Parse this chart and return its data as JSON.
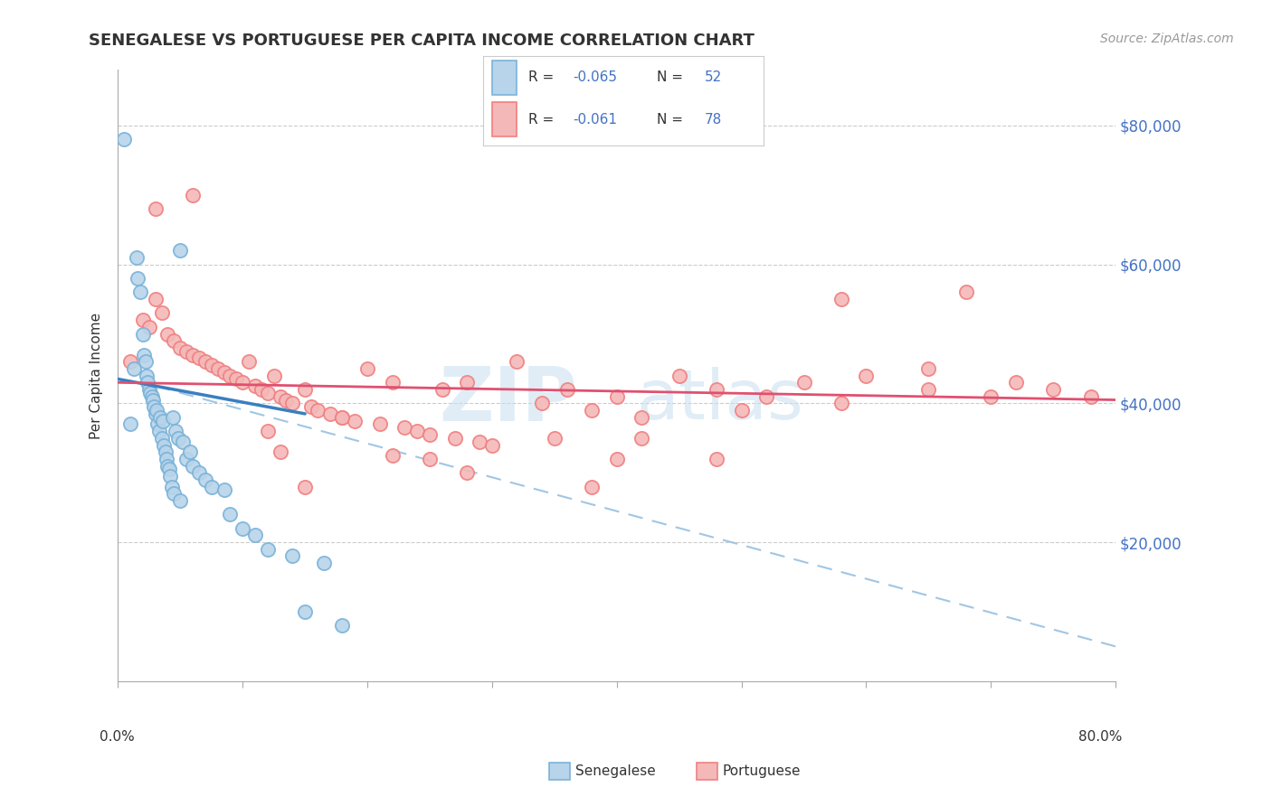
{
  "title": "SENEGALESE VS PORTUGUESE PER CAPITA INCOME CORRELATION CHART",
  "source": "Source: ZipAtlas.com",
  "ylabel": "Per Capita Income",
  "xlim": [
    0.0,
    80.0
  ],
  "ylim": [
    0,
    88000
  ],
  "blue_edge": "#7ab3d9",
  "blue_face": "#b8d4ea",
  "pink_edge": "#f08080",
  "pink_face": "#f5b8b8",
  "trend_blue_solid": "#3a7fbf",
  "trend_blue_dash": "#90bce0",
  "trend_pink": "#e05070",
  "watermark_color": "#c8dff0",
  "senegalese_x": [
    0.5,
    1.0,
    1.3,
    1.5,
    1.6,
    1.8,
    2.0,
    2.1,
    2.2,
    2.3,
    2.4,
    2.5,
    2.6,
    2.7,
    2.8,
    2.9,
    3.0,
    3.1,
    3.2,
    3.3,
    3.4,
    3.5,
    3.6,
    3.7,
    3.8,
    3.9,
    4.0,
    4.1,
    4.2,
    4.3,
    4.4,
    4.5,
    4.6,
    4.8,
    5.0,
    5.2,
    5.5,
    5.8,
    6.0,
    6.5,
    7.0,
    7.5,
    8.5,
    9.0,
    10.0,
    11.0,
    12.0,
    14.0,
    15.0,
    16.5,
    18.0,
    5.0
  ],
  "senegalese_y": [
    78000,
    37000,
    45000,
    61000,
    58000,
    56000,
    50000,
    47000,
    46000,
    44000,
    43000,
    42000,
    41500,
    41000,
    40500,
    39500,
    38500,
    39000,
    37000,
    36000,
    38000,
    35000,
    37500,
    34000,
    33000,
    32000,
    31000,
    30500,
    29500,
    28000,
    38000,
    27000,
    36000,
    35000,
    26000,
    34500,
    32000,
    33000,
    31000,
    30000,
    29000,
    28000,
    27500,
    24000,
    22000,
    21000,
    19000,
    18000,
    10000,
    17000,
    8000,
    62000
  ],
  "portuguese_x": [
    1.0,
    2.0,
    2.5,
    3.0,
    3.5,
    4.0,
    4.5,
    5.0,
    5.5,
    6.0,
    6.5,
    7.0,
    7.5,
    8.0,
    8.5,
    9.0,
    9.5,
    10.0,
    10.5,
    11.0,
    11.5,
    12.0,
    12.5,
    13.0,
    13.5,
    14.0,
    15.0,
    15.5,
    16.0,
    17.0,
    18.0,
    19.0,
    20.0,
    21.0,
    22.0,
    23.0,
    24.0,
    25.0,
    26.0,
    27.0,
    28.0,
    29.0,
    30.0,
    32.0,
    34.0,
    36.0,
    38.0,
    40.0,
    42.0,
    45.0,
    48.0,
    50.0,
    52.0,
    55.0,
    58.0,
    60.0,
    65.0,
    68.0,
    70.0,
    72.0,
    75.0,
    78.0,
    40.0,
    22.0,
    15.0,
    6.0,
    3.0,
    13.0,
    28.0,
    48.0,
    35.0,
    58.0,
    38.0,
    12.0,
    25.0,
    42.0,
    65.0,
    18.0
  ],
  "portuguese_y": [
    46000,
    52000,
    51000,
    55000,
    53000,
    50000,
    49000,
    48000,
    47500,
    47000,
    46500,
    46000,
    45500,
    45000,
    44500,
    44000,
    43500,
    43000,
    46000,
    42500,
    42000,
    41500,
    44000,
    41000,
    40500,
    40000,
    42000,
    39500,
    39000,
    38500,
    38000,
    37500,
    45000,
    37000,
    43000,
    36500,
    36000,
    35500,
    42000,
    35000,
    43000,
    34500,
    34000,
    46000,
    40000,
    42000,
    39000,
    41000,
    38000,
    44000,
    42000,
    39000,
    41000,
    43000,
    40000,
    44000,
    42000,
    56000,
    41000,
    43000,
    42000,
    41000,
    32000,
    32500,
    28000,
    70000,
    68000,
    33000,
    30000,
    32000,
    35000,
    55000,
    28000,
    36000,
    32000,
    35000,
    45000,
    38000
  ],
  "sen_trend_x0": 0.0,
  "sen_trend_y0": 43500,
  "sen_trend_x1": 15.0,
  "sen_trend_y1": 38500,
  "sen_dash_x0": 3.0,
  "sen_dash_y0": 42500,
  "sen_dash_x1": 80.0,
  "sen_dash_y1": 5000,
  "por_trend_x0": 0.0,
  "por_trend_y0": 43000,
  "por_trend_x1": 80.0,
  "por_trend_y1": 40500
}
